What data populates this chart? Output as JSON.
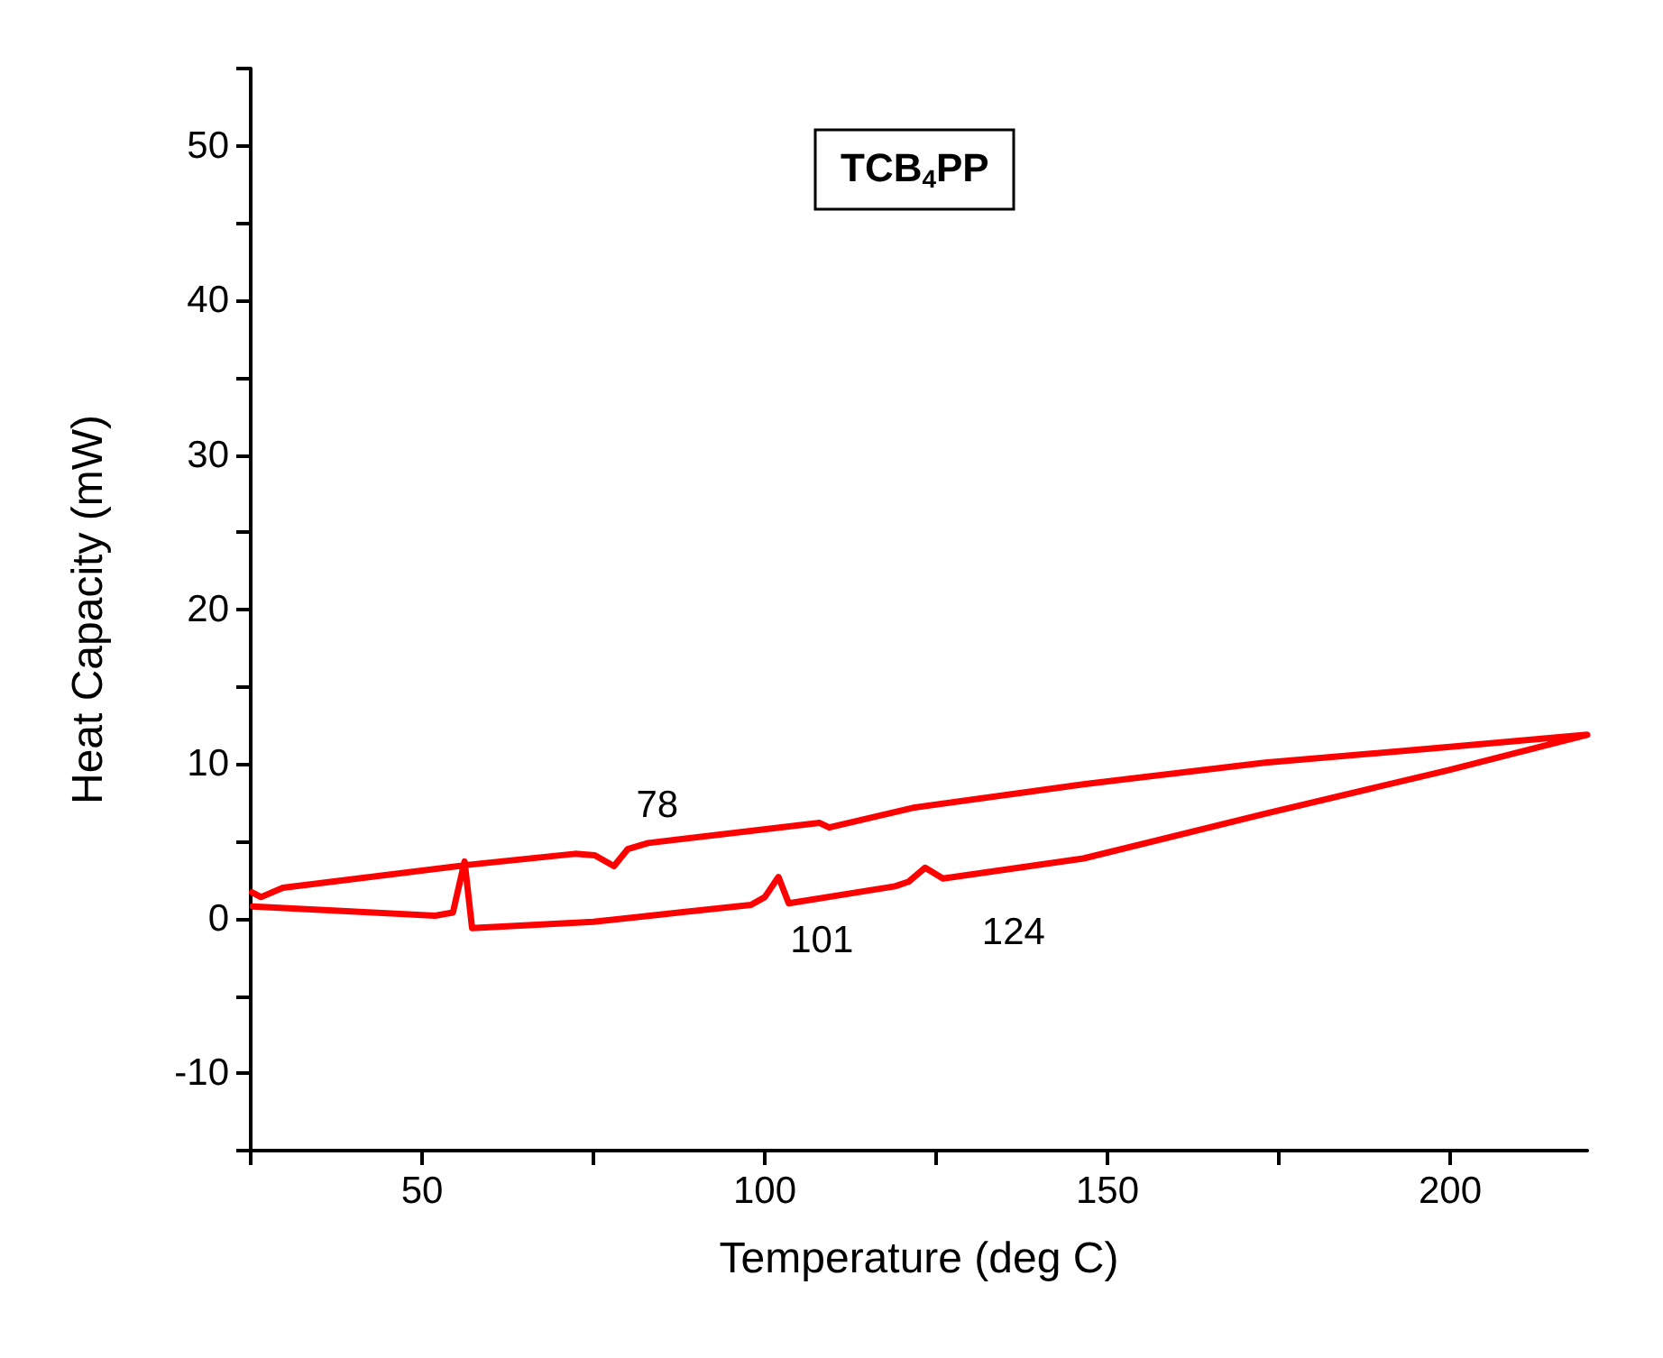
{
  "chart_data": {
    "type": "line",
    "title": "TCB$_{4}$PP",
    "xlabel": "Temperature (deg C)",
    "ylabel": "Heat Capacity (mW)",
    "x": [
      25.3,
      51.9,
      54.5,
      56.2,
      57.3,
      75,
      98,
      100,
      102,
      103.5,
      119,
      121,
      123.4,
      126,
      146.5,
      173,
      199.6,
      220,
      199.6,
      173,
      146.5,
      121.9,
      109.4,
      108,
      83,
      80,
      78,
      75.2,
      72.3,
      57,
      29.7,
      26.5,
      25.2
    ],
    "series": [
      {
        "color": "#ff0000",
        "values": [
          0.8,
          0.2,
          0.4,
          3.7,
          -0.6,
          -0.2,
          0.9,
          1.4,
          2.7,
          1.0,
          2.1,
          2.4,
          3.3,
          2.6,
          3.9,
          6.8,
          9.6,
          11.9,
          11.1,
          10.1,
          8.7,
          7.2,
          5.9,
          6.2,
          4.9,
          4.5,
          3.4,
          4.1,
          4.2,
          3.5,
          2.0,
          1.4,
          1.7
        ]
      }
    ],
    "annotations": [
      {
        "text": "78",
        "x": 78,
        "y": 3.4
      },
      {
        "text": "101",
        "x": 102,
        "y": 2.7
      },
      {
        "text": "124",
        "x": 123.4,
        "y": 3.3
      }
    ],
    "xlim": [
      25,
      220
    ],
    "ylim": [
      -15,
      55
    ],
    "xticks": [
      {
        "value": 25,
        "label": null
      },
      50,
      {
        "value": 75,
        "label": null
      },
      100,
      {
        "value": 125,
        "label": null
      },
      150,
      {
        "value": 175,
        "label": null
      },
      200
    ],
    "yticks": [
      {
        "value": -15,
        "label": null
      },
      -10,
      {
        "value": -5,
        "label": null
      },
      0,
      {
        "value": 5,
        "label": null
      },
      10,
      {
        "value": 15,
        "label": null
      },
      20,
      {
        "value": 25,
        "label": null
      },
      30,
      {
        "value": 35,
        "label": null
      },
      40,
      {
        "value": 45,
        "label": null
      },
      50,
      {
        "value": 55,
        "label": null
      }
    ],
    "grid": false,
    "marker": "none",
    "line_style": "solid"
  }
}
